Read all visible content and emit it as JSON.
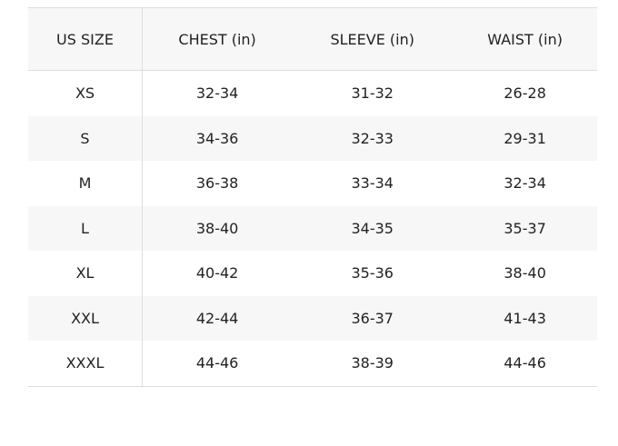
{
  "headers": [
    "US SIZE",
    "CHEST (in)",
    "SLEEVE (in)",
    "WAIST (in)"
  ],
  "rows": [
    [
      "XS",
      "32-34",
      "31-32",
      "26-28"
    ],
    [
      "S",
      "34-36",
      "32-33",
      "29-31"
    ],
    [
      "M",
      "36-38",
      "33-34",
      "32-34"
    ],
    [
      "L",
      "38-40",
      "34-35",
      "35-37"
    ],
    [
      "XL",
      "40-42",
      "35-36",
      "38-40"
    ],
    [
      "XXL",
      "42-44",
      "36-37",
      "41-43"
    ],
    [
      "XXXL",
      "44-46",
      "38-39",
      "44-46"
    ]
  ]
}
